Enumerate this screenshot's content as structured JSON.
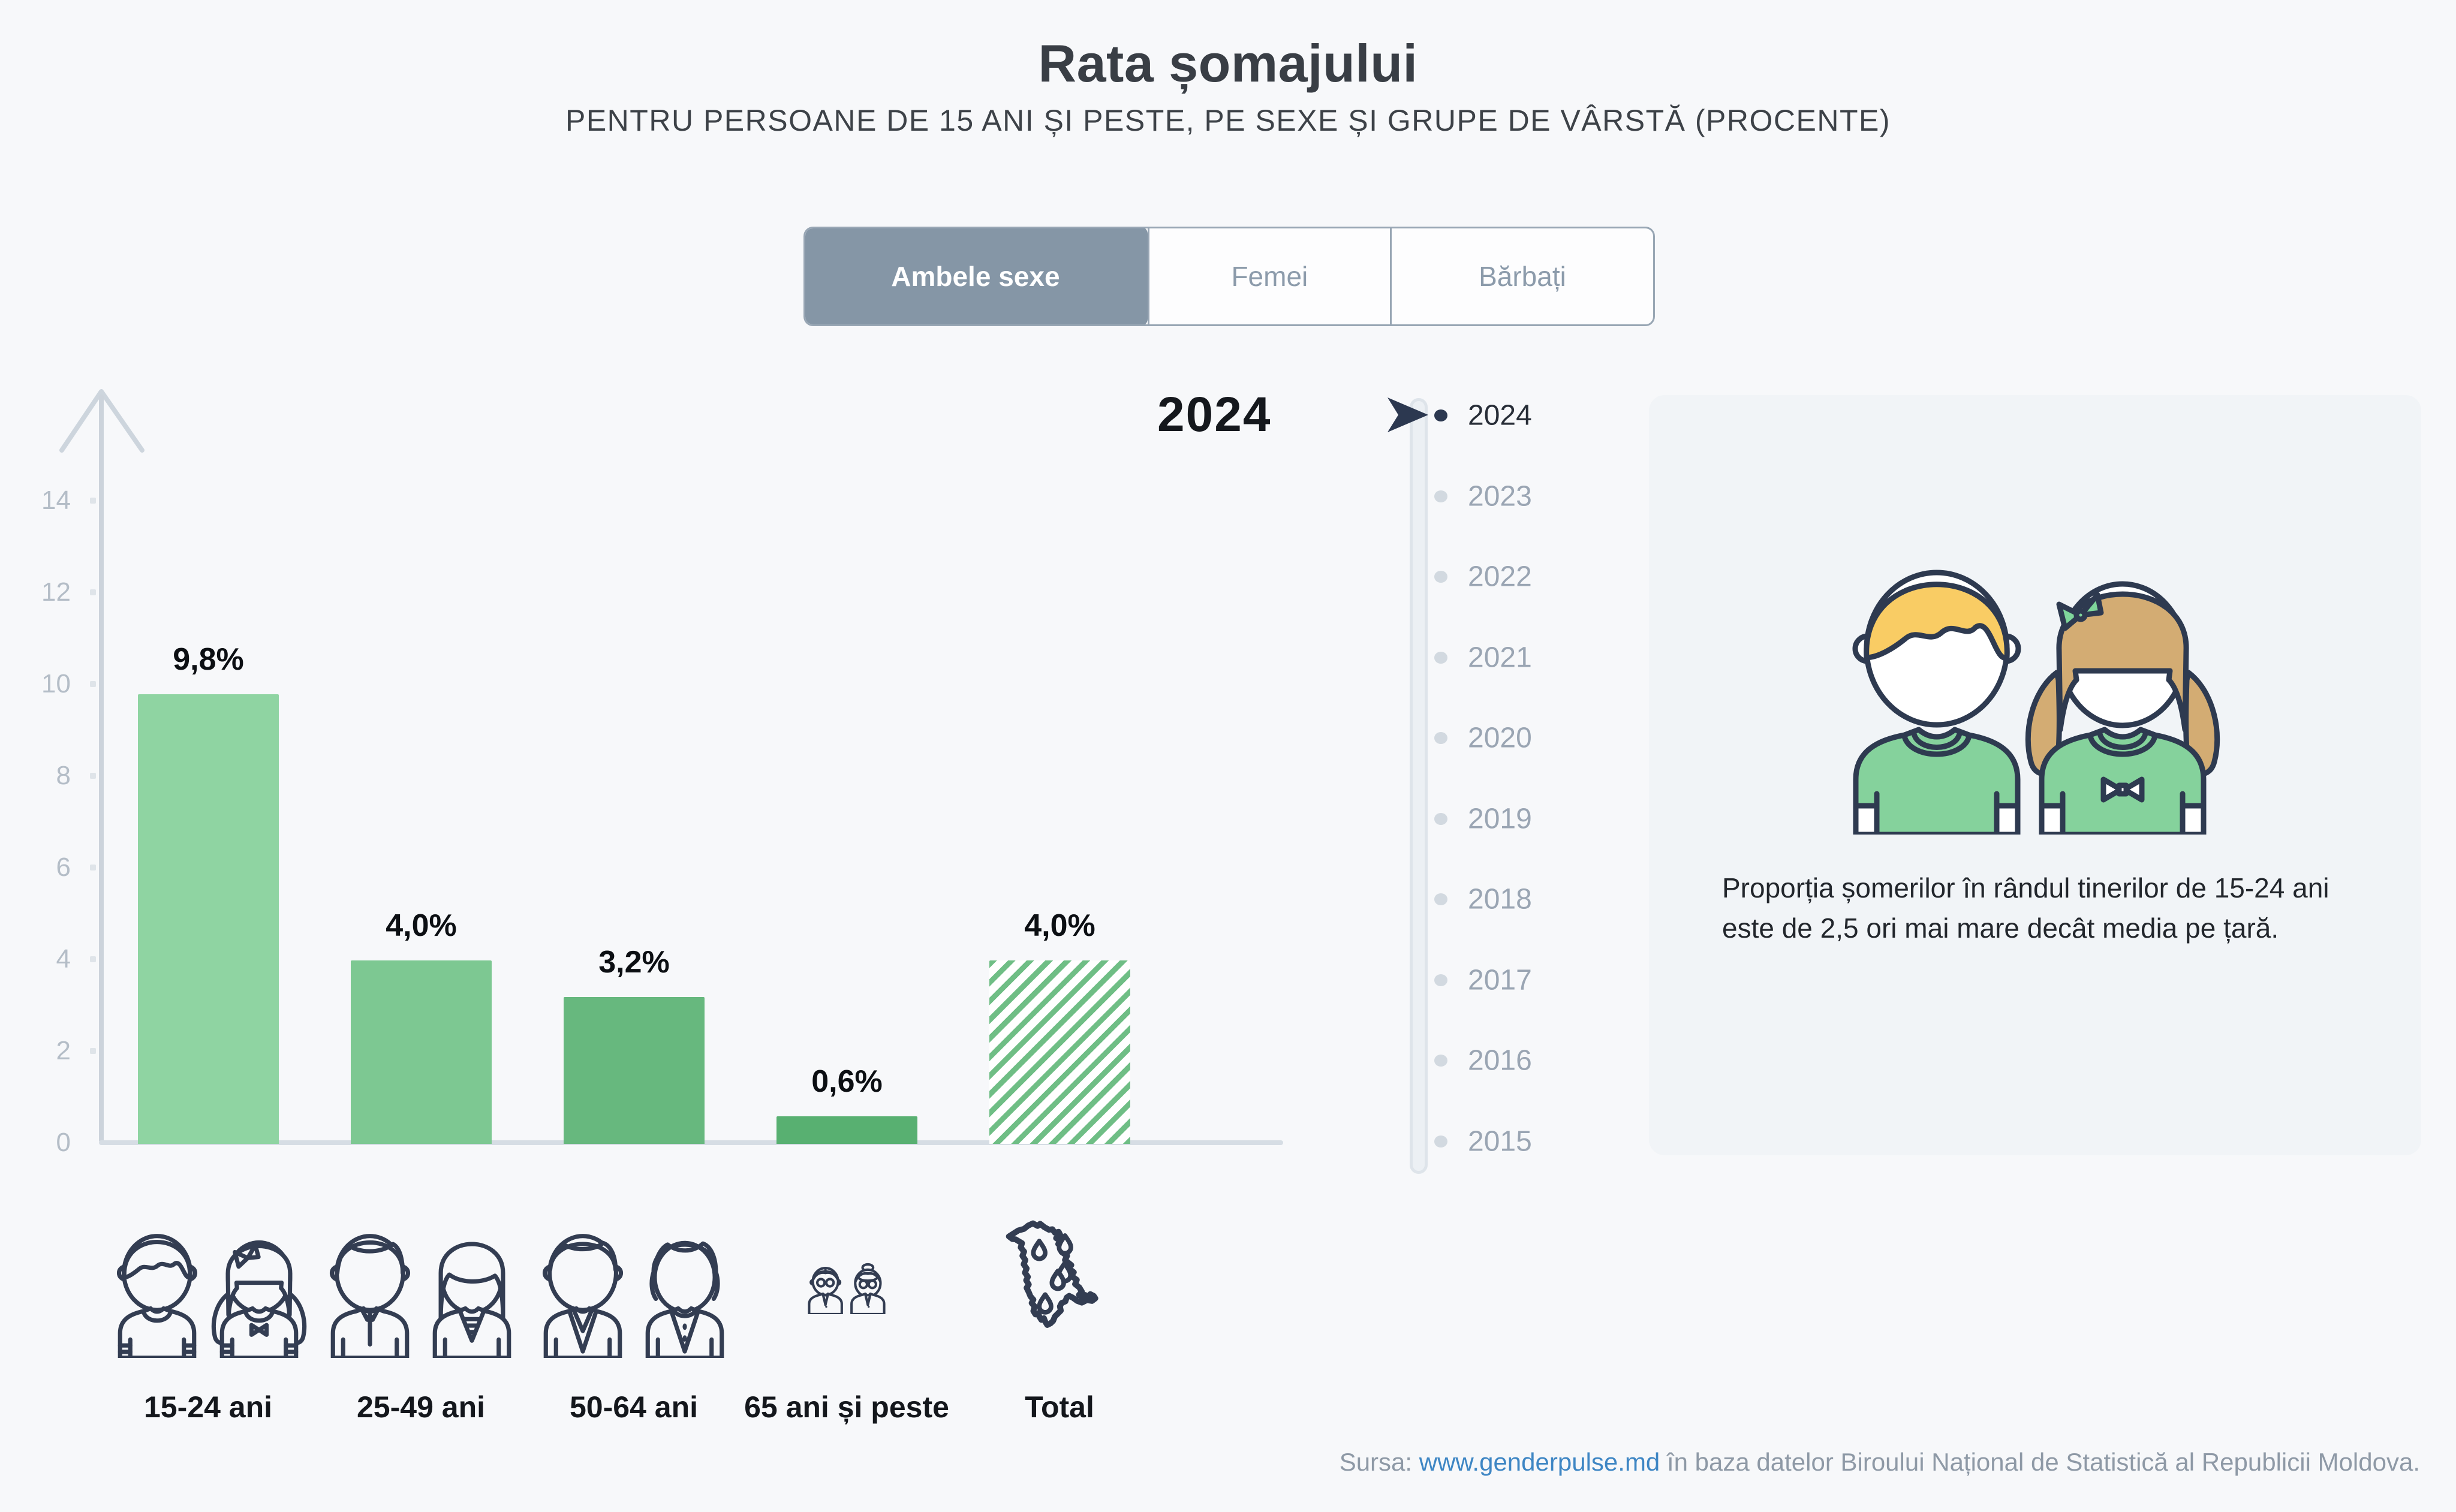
{
  "page": {
    "title": "Rata șomajului",
    "subtitle": "PENTRU PERSOANE DE 15 ANI ȘI PESTE, PE SEXE ȘI GRUPE DE VÂRSTĂ (PROCENTE)"
  },
  "tabs": [
    {
      "label": "Ambele sexe",
      "selected": true
    },
    {
      "label": "Femei",
      "selected": false
    },
    {
      "label": "Bărbați",
      "selected": false
    }
  ],
  "chart_data": {
    "type": "bar",
    "title": "Rata șomajului",
    "subtitle": "Pentru persoane de 15 ani și peste, pe sexe și grupe de vârstă (procente)",
    "selected_sex": "Ambele sexe",
    "selected_year": "2024",
    "categories": [
      "15-24 ani",
      "25-49 ani",
      "50-64 ani",
      "65 ani și peste",
      "Total"
    ],
    "values": [
      9.8,
      4.0,
      3.2,
      0.6,
      4.0
    ],
    "value_labels": [
      "9,8%",
      "4,0%",
      "3,2%",
      "0,6%",
      "4,0%"
    ],
    "ylim": [
      0,
      14
    ],
    "yticks": [
      0,
      2,
      4,
      6,
      8,
      10,
      12,
      14
    ],
    "grid": false,
    "bar_styles": [
      "solid",
      "solid",
      "solid",
      "solid",
      "hatched"
    ]
  },
  "timeline": {
    "selected": "2024",
    "years": [
      "2024",
      "2023",
      "2022",
      "2021",
      "2020",
      "2019",
      "2018",
      "2017",
      "2016",
      "2015"
    ]
  },
  "info_panel": {
    "text": "Proporția șomerilor în rândul tinerilor de 15-24 ani este de 2,5 ori mai mare decât media pe țară.",
    "illustration": "boy-and-girl"
  },
  "category_icons": [
    "young-pair-icon",
    "adult-pair-icon",
    "senior-pair-icon",
    "elderly-pair-icon",
    "moldova-map-icon"
  ],
  "footer": {
    "prefix": "Sursa: ",
    "link": "www.genderpulse.md",
    "suffix": " în baza datelor Biroului Național de Statistică al Republicii Moldova."
  },
  "colors": {
    "background": "#f7f8fa",
    "bars": [
      "#8fd4a2",
      "#7dc892",
      "#67b87e",
      "#58b071"
    ],
    "hatch": "#6fbe85",
    "tab_selected_bg": "#8596a6",
    "tab_border": "#98a6b4",
    "tab_text": "#8c9bab",
    "axis": "#ccd3db",
    "tick_label": "#b4bdc7",
    "timeline_active": "#2c3850",
    "timeline_inactive": "#9aa5b3",
    "icon_stroke": "#333d52",
    "link": "#3e86c4",
    "footer_text": "#8e99a6",
    "panel_bg": "#f1f4f7"
  }
}
